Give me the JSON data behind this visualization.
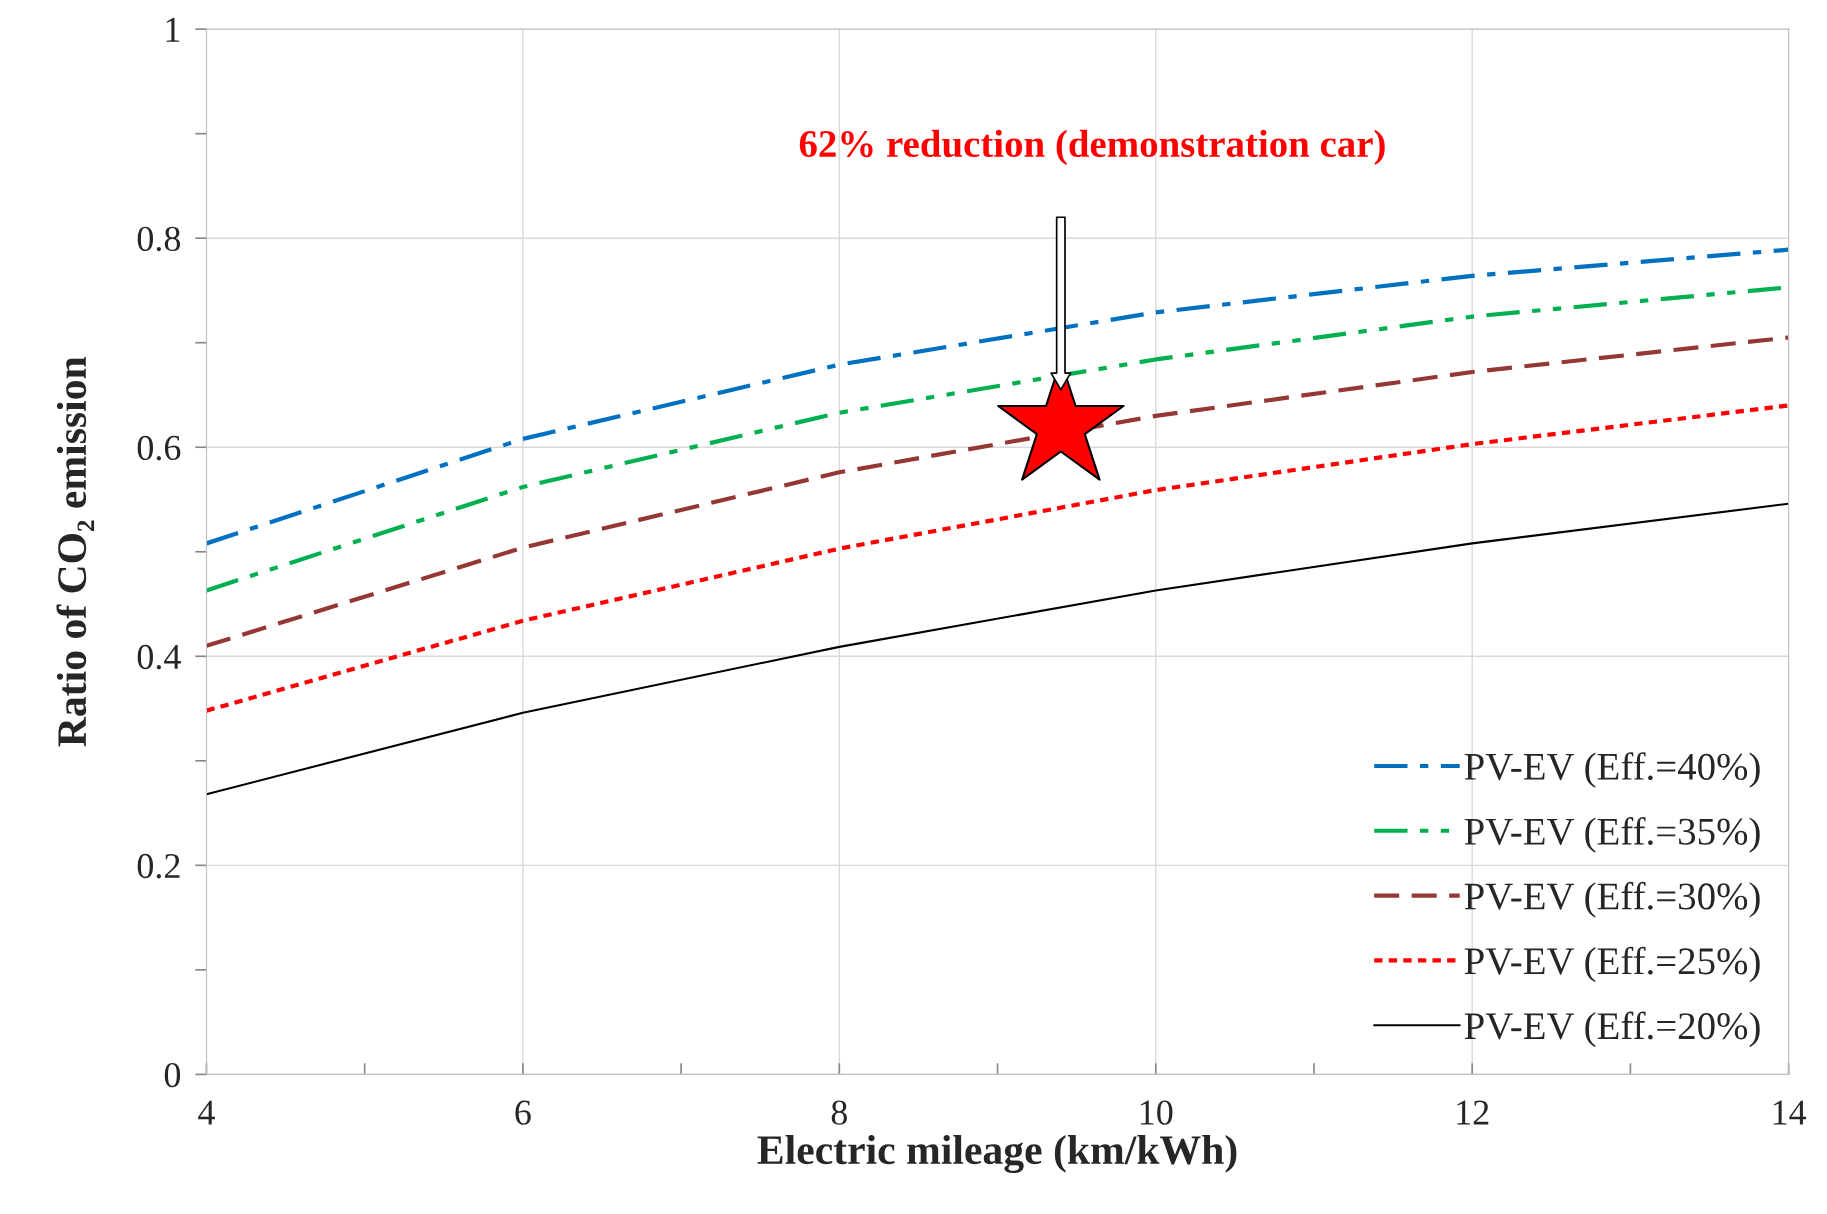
{
  "chart_data": {
    "type": "line",
    "xlabel": "Electric mileage (km/kWh)",
    "ylabel": "Ratio of CO₂ emission",
    "x": [
      4,
      6,
      8,
      10,
      12,
      14
    ],
    "series": [
      {
        "name": "PV-EV (Eff.=40%)",
        "color": "#0070c0",
        "line_style": "dashdot",
        "values": [
          0.508,
          0.608,
          0.679,
          0.729,
          0.764,
          0.789
        ]
      },
      {
        "name": "PV-EV (Eff.=35%)",
        "color": "#00b050",
        "line_style": "dashdotdot",
        "values": [
          0.463,
          0.562,
          0.633,
          0.684,
          0.725,
          0.753
        ]
      },
      {
        "name": "PV-EV (Eff.=30%)",
        "color": "#953735",
        "line_style": "dashed",
        "values": [
          0.41,
          0.504,
          0.576,
          0.63,
          0.672,
          0.705
        ]
      },
      {
        "name": "PV-EV (Eff.=25%)",
        "color": "#ff0000",
        "line_style": "dotted",
        "values": [
          0.348,
          0.434,
          0.503,
          0.559,
          0.603,
          0.64
        ]
      },
      {
        "name": "PV-EV (Eff.=20%)",
        "color": "#000000",
        "line_style": "solid",
        "values": [
          0.268,
          0.346,
          0.409,
          0.463,
          0.508,
          0.546
        ]
      },
      {
        "type": "scatter",
        "marker": "star",
        "color": "#ff0000",
        "x": [
          9.4
        ],
        "values": [
          0.62
        ]
      }
    ],
    "annotations": [
      "62% reduction (demonstration car)"
    ],
    "xlim": [
      4,
      14
    ],
    "ylim": [
      0,
      1
    ],
    "xticks": [
      4,
      {
        "value": 5,
        "label": null
      },
      6,
      {
        "value": 7,
        "label": null
      },
      8,
      {
        "value": 9,
        "label": null
      },
      10,
      {
        "value": 11,
        "label": null
      },
      12,
      {
        "value": 13,
        "label": null
      },
      14
    ],
    "yticks": [
      0,
      {
        "value": 0.1,
        "label": null
      },
      0.2,
      {
        "value": 0.3,
        "label": null
      },
      0.4,
      {
        "value": 0.5,
        "label": null
      },
      0.6,
      {
        "value": 0.7,
        "label": null
      },
      0.8,
      {
        "value": 0.9,
        "label": null
      },
      1
    ],
    "grid": true,
    "legend": "bottom right"
  }
}
